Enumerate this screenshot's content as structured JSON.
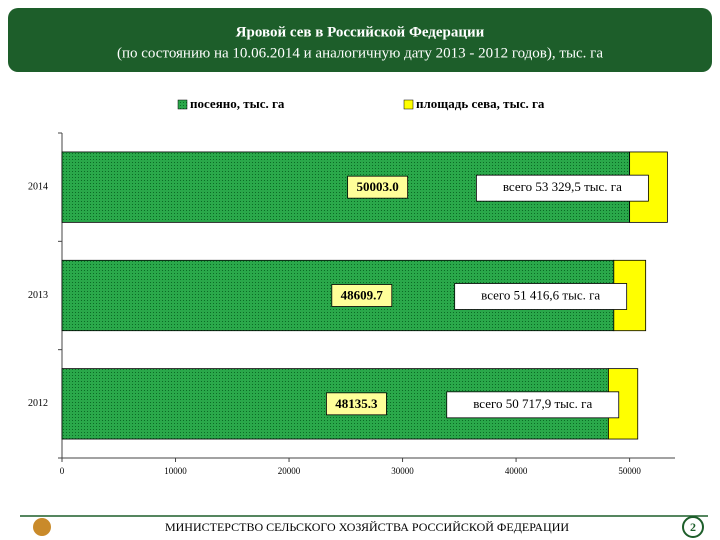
{
  "chart_data": {
    "type": "stacked_barh",
    "title": "Яровой сев в Российской Федерации",
    "subtitle": "(по состоянию на 10.06.2014 и аналогичную дату 2013 - 2012 годов), тыс. га",
    "categories": [
      "2014",
      "2013",
      "2012"
    ],
    "series": [
      {
        "name": "посеяно, тыс. га",
        "color": "#1e9a3c",
        "values": [
          50003.0,
          48609.7,
          48135.3
        ],
        "value_labels": [
          "50003.0",
          "48609.7",
          "48135.3"
        ]
      },
      {
        "name": "площадь сева, тыс. га",
        "color": "#ffff00",
        "values": [
          3326.5,
          2806.9,
          2582.6
        ]
      }
    ],
    "annotations": [
      "всего 53 329,5 тыс. га",
      "всего 51 416,6  тыс. га",
      "всего 50 717,9 тыс. га"
    ],
    "xlim": [
      0,
      54000
    ],
    "xticks": [
      0,
      10000,
      20000,
      30000,
      40000,
      50000
    ],
    "legend": "top"
  },
  "footer": {
    "text": "МИНИСТЕРСТВО СЕЛЬСКОГО ХОЗЯЙСТВА РОССИЙСКОЙ ФЕДЕРАЦИИ",
    "page": "2"
  }
}
